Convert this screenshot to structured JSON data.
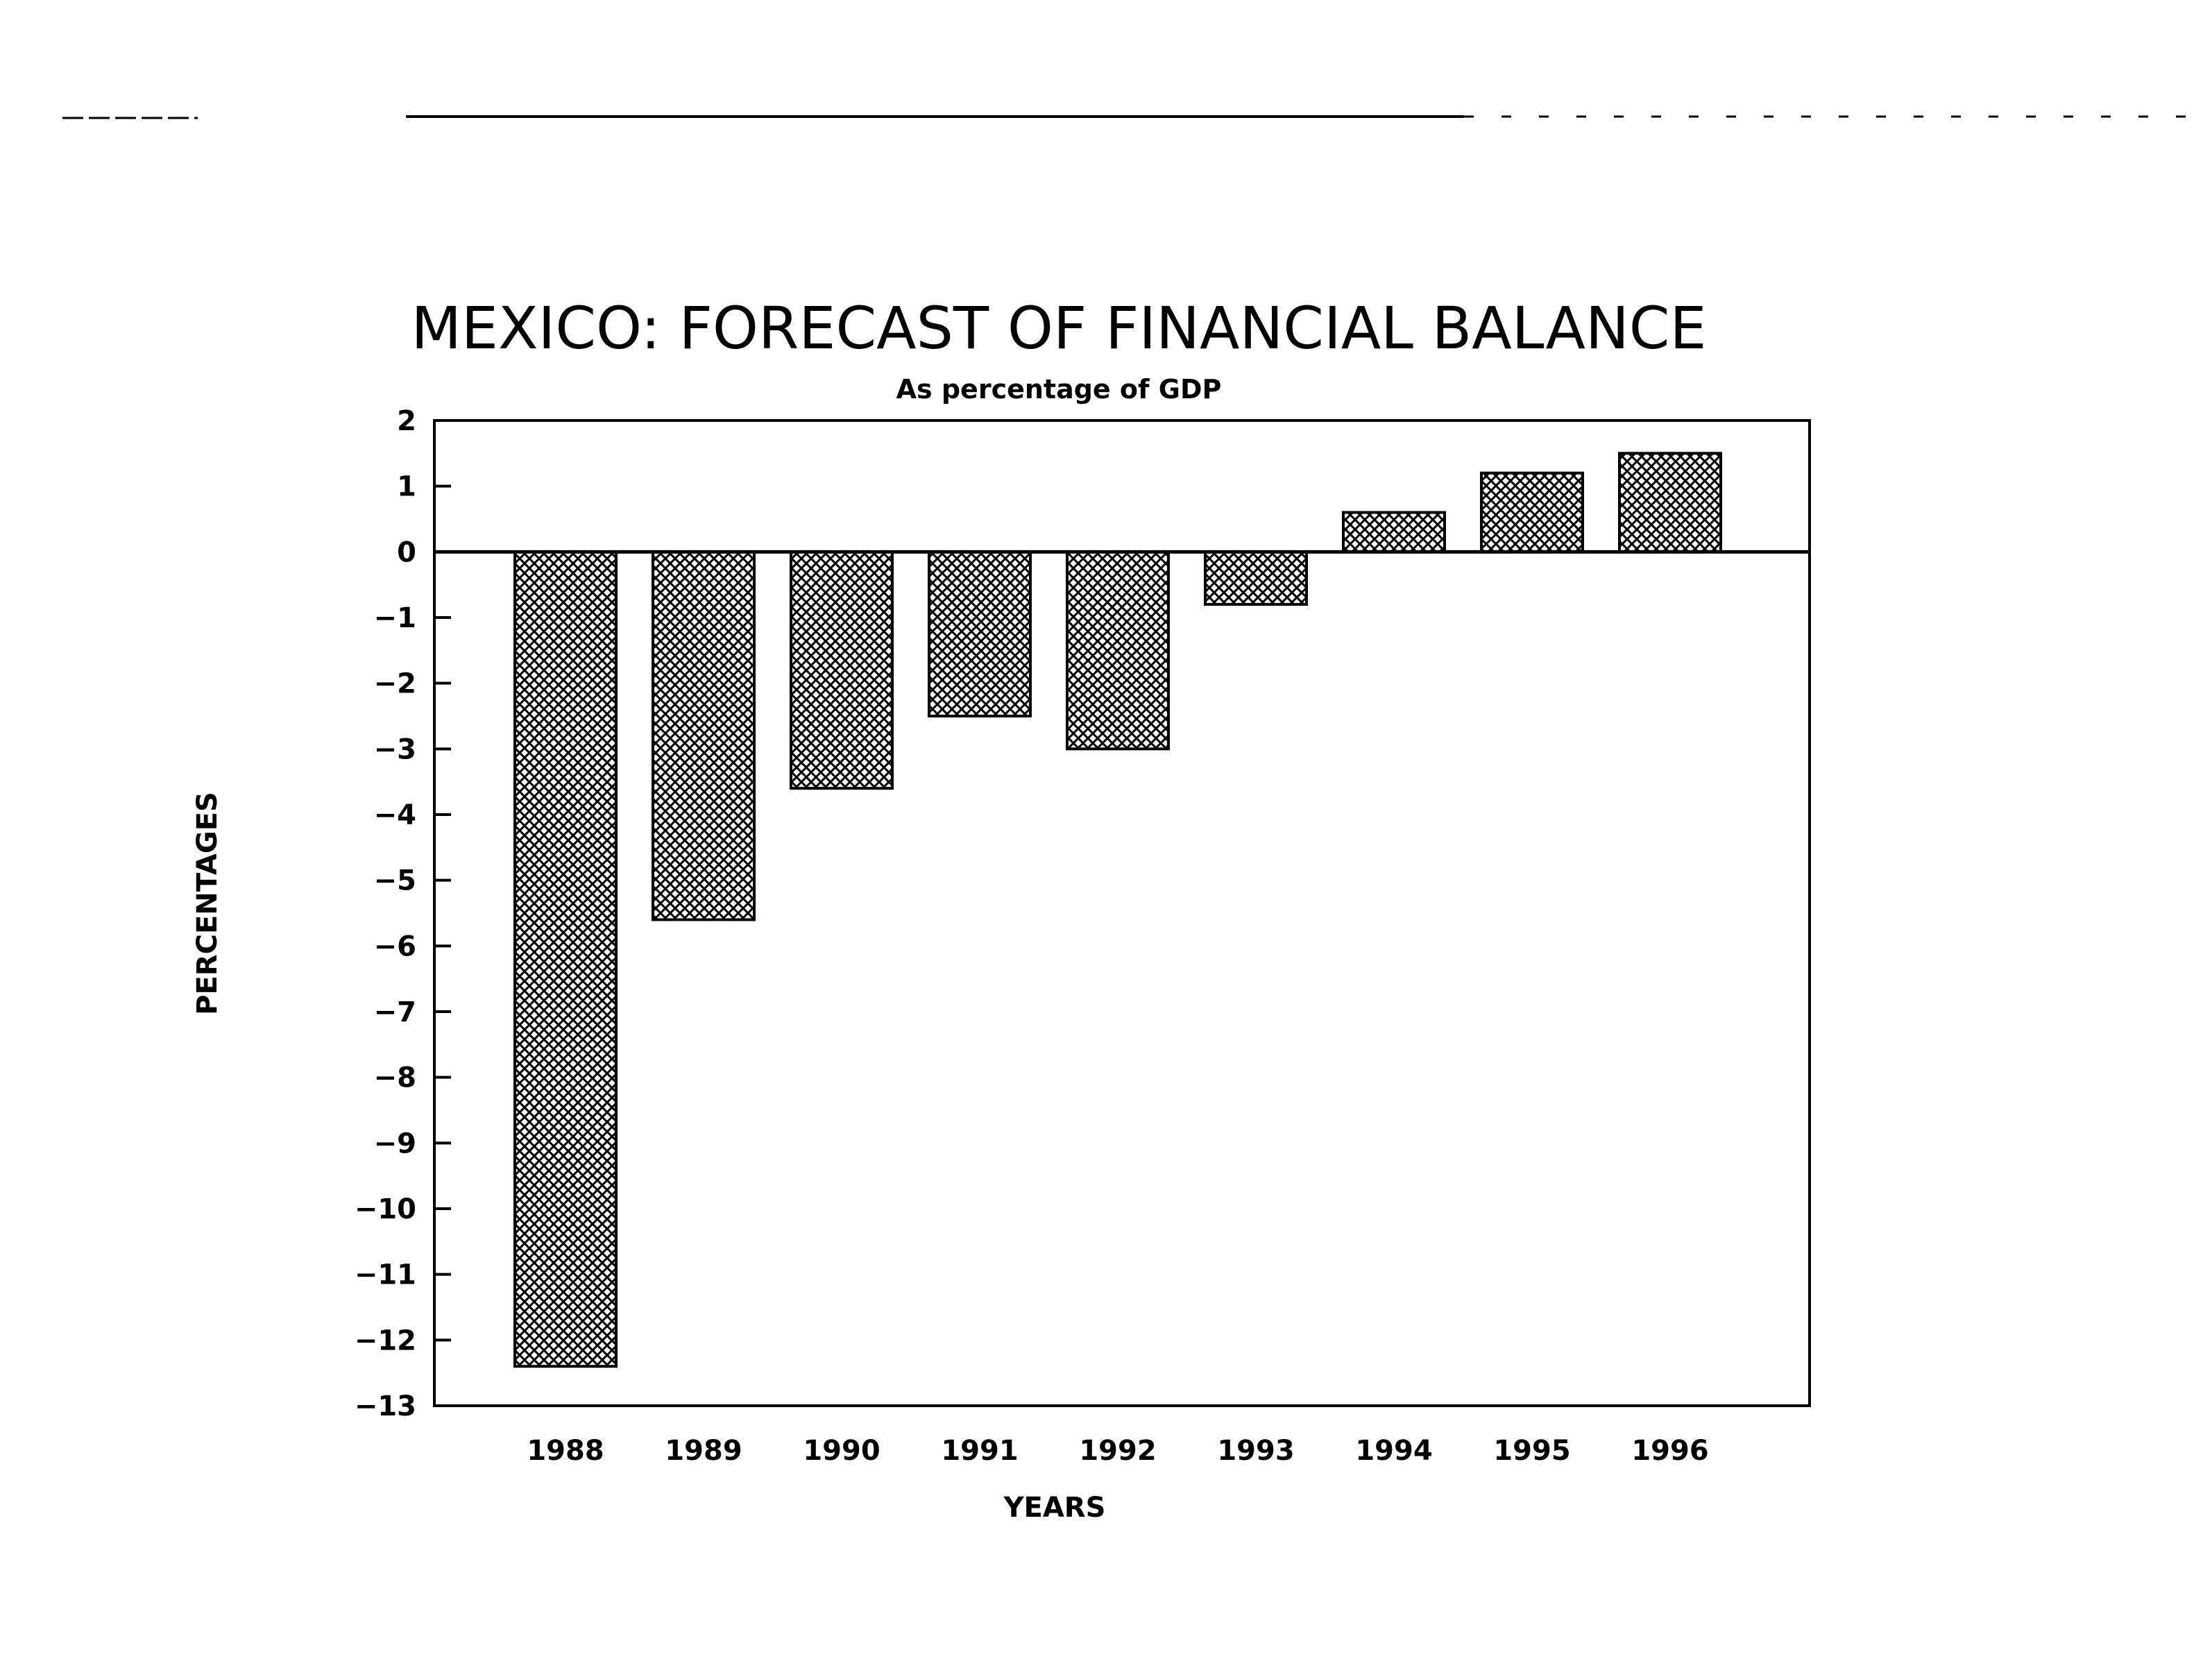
{
  "chart_data": {
    "type": "bar",
    "title": "MEXICO: FORECAST OF FINANCIAL BALANCE",
    "subtitle": "As percentage of GDP",
    "xlabel": "YEARS",
    "ylabel": "PERCENTAGES",
    "categories": [
      "1988",
      "1989",
      "1990",
      "1991",
      "1992",
      "1993",
      "1994",
      "1995",
      "1996"
    ],
    "values": [
      -12.4,
      -5.6,
      -3.6,
      -2.5,
      -3.0,
      -0.8,
      0.6,
      1.2,
      1.5
    ],
    "ylim": [
      -13,
      2
    ],
    "yticks": [
      "2",
      "1",
      "0",
      "-1",
      "-2",
      "-3",
      "-4",
      "-5",
      "-6",
      "-7",
      "-8",
      "-9",
      "-10",
      "-11",
      "-12",
      "-13"
    ],
    "grid": false,
    "legend": "none",
    "bar_fill": "crosshatch",
    "colors": {
      "ink": "#000000",
      "background": "#ffffff"
    }
  }
}
